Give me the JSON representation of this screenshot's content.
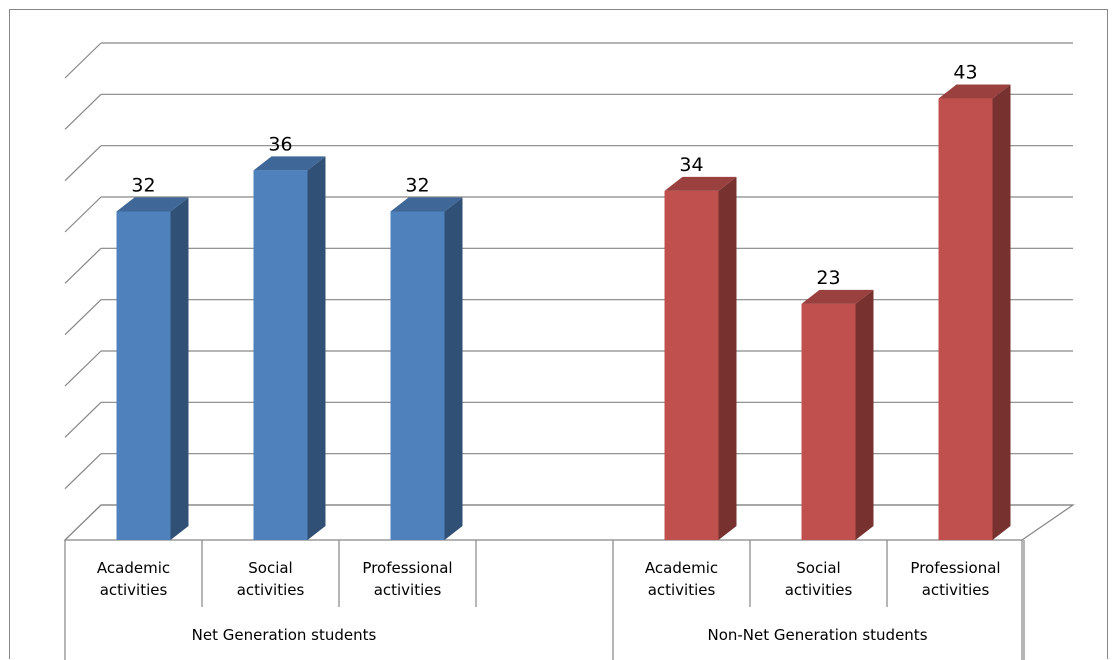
{
  "chart_data": {
    "type": "bar",
    "title": "",
    "xlabel": "",
    "ylabel": "",
    "ylim": [
      0,
      45
    ],
    "y_ticks": [
      0,
      5,
      10,
      15,
      20,
      25,
      30,
      35,
      40,
      45
    ],
    "grid": true,
    "three_d": true,
    "legend": "none",
    "groups": [
      {
        "label": "Net Generation students",
        "color": "#4f81bd",
        "categories": [
          "Academic activities",
          "Social activities",
          "Professional activities"
        ],
        "values": [
          32,
          36,
          32
        ]
      },
      {
        "label": "Non-Net Generation students",
        "color": "#c0504d",
        "categories": [
          "Academic activities",
          "Social activities",
          "Professional activities"
        ],
        "values": [
          34,
          23,
          43
        ]
      }
    ]
  }
}
